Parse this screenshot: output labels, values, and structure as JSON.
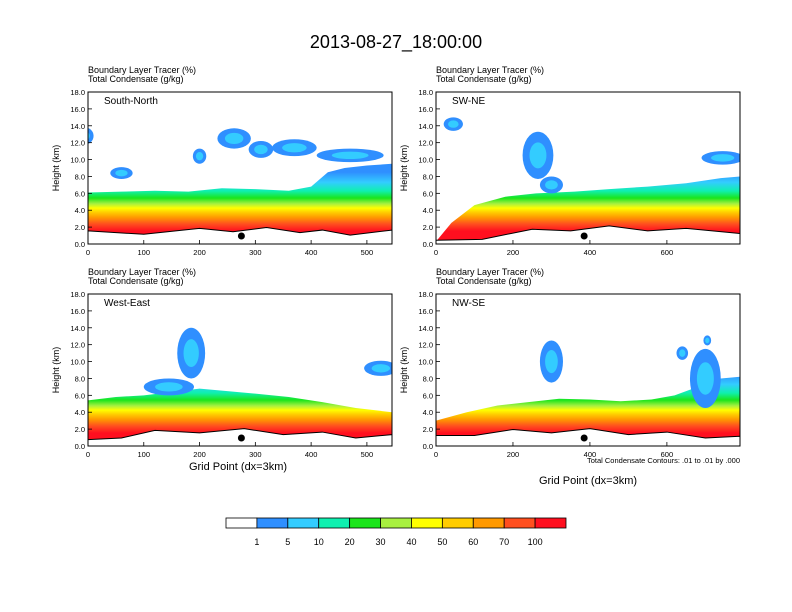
{
  "figure": {
    "title": "2013-08-27_18:00:00",
    "xlabel": "Grid Point (dx=3km)",
    "contour_note": "Total Condensate Contours: .01 to .01 by .000"
  },
  "chart_data": [
    {
      "type": "heatmap",
      "title": "South-North",
      "subtitle_1": "Boundary Layer Tracer   (%)",
      "subtitle_2": "Total Condensate   (g/kg)",
      "ylabel": "Height (km)",
      "xlabel": "",
      "xlim": [
        0,
        545
      ],
      "ylim": [
        0,
        18
      ],
      "x_ticks": [
        0,
        100,
        200,
        300,
        400,
        500
      ],
      "y_ticks": [
        "0.0",
        "2.0",
        "4.0",
        "6.0",
        "8.0",
        "10.0",
        "12.0",
        "14.0",
        "16.0",
        "18.0"
      ],
      "marker_x": 275,
      "cloud_top": [
        [
          0,
          6.1
        ],
        [
          60,
          6.2
        ],
        [
          120,
          6.3
        ],
        [
          180,
          6.2
        ],
        [
          240,
          6.6
        ],
        [
          300,
          6.5
        ],
        [
          360,
          6.3
        ],
        [
          400,
          6.8
        ],
        [
          430,
          8.5
        ],
        [
          460,
          9.0
        ],
        [
          500,
          9.3
        ],
        [
          545,
          9.5
        ]
      ],
      "ground": [
        [
          0,
          1.3
        ],
        [
          100,
          1.4
        ],
        [
          200,
          1.6
        ],
        [
          260,
          1.7
        ],
        [
          320,
          1.7
        ],
        [
          380,
          1.6
        ],
        [
          420,
          1.4
        ],
        [
          470,
          1.3
        ],
        [
          545,
          1.4
        ]
      ],
      "clouds": [
        [
          -5,
          12.8,
          15,
          1.0
        ],
        [
          200,
          10.4,
          12,
          0.9
        ],
        [
          262,
          12.5,
          30,
          1.2
        ],
        [
          310,
          11.2,
          22,
          1.0
        ],
        [
          370,
          11.4,
          40,
          1.0
        ],
        [
          470,
          10.5,
          60,
          0.8
        ],
        [
          60,
          8.4,
          20,
          0.7
        ]
      ]
    },
    {
      "type": "heatmap",
      "title": "SW-NE",
      "subtitle_1": "Boundary Layer Tracer   (%)",
      "subtitle_2": "Total Condensate   (g/kg)",
      "ylabel": "Height (km)",
      "xlabel": "",
      "xlim": [
        0,
        790
      ],
      "ylim": [
        0,
        18
      ],
      "x_ticks": [
        0,
        200,
        400,
        600
      ],
      "y_ticks": [
        "0.0",
        "2.0",
        "4.0",
        "6.0",
        "8.0",
        "10.0",
        "12.0",
        "14.0",
        "16.0",
        "18.0"
      ],
      "marker_x": 385,
      "cloud_top": [
        [
          0,
          0.3
        ],
        [
          40,
          2.5
        ],
        [
          100,
          4.6
        ],
        [
          180,
          5.6
        ],
        [
          260,
          6.0
        ],
        [
          360,
          6.2
        ],
        [
          450,
          6.5
        ],
        [
          550,
          6.8
        ],
        [
          650,
          7.2
        ],
        [
          740,
          7.8
        ],
        [
          790,
          8.0
        ]
      ],
      "ground": [
        [
          0,
          0.2
        ],
        [
          120,
          0.8
        ],
        [
          250,
          1.5
        ],
        [
          350,
          1.8
        ],
        [
          450,
          1.9
        ],
        [
          550,
          1.8
        ],
        [
          650,
          1.6
        ],
        [
          790,
          1.5
        ]
      ],
      "clouds": [
        [
          45,
          14.2,
          25,
          0.8
        ],
        [
          265,
          10.5,
          40,
          2.8
        ],
        [
          300,
          7.0,
          30,
          1.0
        ],
        [
          745,
          10.2,
          55,
          0.8
        ]
      ]
    },
    {
      "type": "heatmap",
      "title": "West-East",
      "subtitle_1": "Boundary Layer Tracer   (%)",
      "subtitle_2": "Total Condensate   (g/kg)",
      "ylabel": "Height (km)",
      "xlabel": "Grid Point (dx=3km)",
      "xlim": [
        0,
        545
      ],
      "ylim": [
        0,
        18
      ],
      "x_ticks": [
        0,
        100,
        200,
        300,
        400,
        500
      ],
      "y_ticks": [
        "0.0",
        "2.0",
        "4.0",
        "6.0",
        "8.0",
        "10.0",
        "12.0",
        "14.0",
        "16.0",
        "18.0"
      ],
      "marker_x": 275,
      "cloud_top": [
        [
          0,
          5.4
        ],
        [
          50,
          5.8
        ],
        [
          100,
          6.0
        ],
        [
          150,
          6.4
        ],
        [
          200,
          6.8
        ],
        [
          250,
          6.5
        ],
        [
          300,
          6.2
        ],
        [
          360,
          5.8
        ],
        [
          420,
          5.2
        ],
        [
          480,
          4.5
        ],
        [
          545,
          4.0
        ]
      ],
      "ground": [
        [
          0,
          0.5
        ],
        [
          60,
          1.2
        ],
        [
          120,
          1.6
        ],
        [
          200,
          1.8
        ],
        [
          280,
          1.8
        ],
        [
          350,
          1.6
        ],
        [
          420,
          1.4
        ],
        [
          480,
          1.2
        ],
        [
          545,
          1.1
        ]
      ],
      "clouds": [
        [
          185,
          11.0,
          25,
          3.0
        ],
        [
          145,
          7.0,
          45,
          1.0
        ],
        [
          525,
          9.2,
          30,
          0.9
        ]
      ]
    },
    {
      "type": "heatmap",
      "title": "NW-SE",
      "subtitle_1": "Boundary Layer Tracer   (%)",
      "subtitle_2": "Total Condensate   (g/kg)",
      "ylabel": "Height (km)",
      "xlabel": "Grid Point (dx=3km)",
      "xlim": [
        0,
        790
      ],
      "ylim": [
        0,
        18
      ],
      "x_ticks": [
        0,
        200,
        400,
        600
      ],
      "y_ticks": [
        "0.0",
        "2.0",
        "4.0",
        "6.0",
        "8.0",
        "10.0",
        "12.0",
        "14.0",
        "16.0",
        "18.0"
      ],
      "marker_x": 385,
      "cloud_top": [
        [
          0,
          3.0
        ],
        [
          80,
          4.0
        ],
        [
          160,
          4.8
        ],
        [
          240,
          5.2
        ],
        [
          320,
          5.6
        ],
        [
          400,
          5.5
        ],
        [
          480,
          5.3
        ],
        [
          560,
          5.5
        ],
        [
          620,
          6.0
        ],
        [
          680,
          7.0
        ],
        [
          740,
          8.0
        ],
        [
          790,
          8.2
        ]
      ],
      "ground": [
        [
          0,
          1.0
        ],
        [
          100,
          1.5
        ],
        [
          200,
          1.7
        ],
        [
          300,
          1.8
        ],
        [
          400,
          1.8
        ],
        [
          500,
          1.6
        ],
        [
          600,
          1.4
        ],
        [
          700,
          1.2
        ],
        [
          790,
          0.9
        ]
      ],
      "clouds": [
        [
          300,
          10.0,
          30,
          2.5
        ],
        [
          700,
          8.0,
          40,
          3.5
        ],
        [
          640,
          11.0,
          15,
          0.8
        ],
        [
          705,
          12.5,
          10,
          0.6
        ]
      ]
    }
  ],
  "colorbar": {
    "labels": [
      "1",
      "5",
      "10",
      "20",
      "30",
      "40",
      "50",
      "60",
      "70",
      "100"
    ],
    "colors": [
      "#ffffff",
      "#2f8fff",
      "#33ccff",
      "#0ff0b0",
      "#1be51b",
      "#a8f040",
      "#ffff00",
      "#ffcc00",
      "#ff9900",
      "#ff4f1f",
      "#ff0f1f"
    ]
  }
}
